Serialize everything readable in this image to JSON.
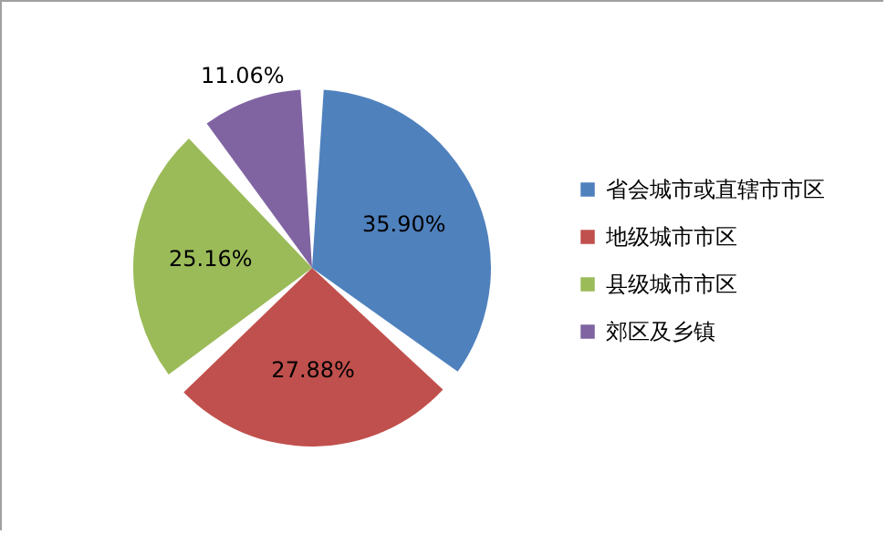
{
  "chart_data": {
    "type": "pie",
    "categories": [
      "省会城市或直辖市市区",
      "地级城市市区",
      "县级城市市区",
      "郊区及乡镇"
    ],
    "values": [
      35.9,
      27.88,
      25.16,
      11.06
    ],
    "colors": [
      "#4f81bd",
      "#c0504d",
      "#9bbb59",
      "#8064a2"
    ],
    "value_labels": [
      "35.90%",
      "27.88%",
      "25.16%",
      "11.06%"
    ],
    "legend": "right"
  }
}
